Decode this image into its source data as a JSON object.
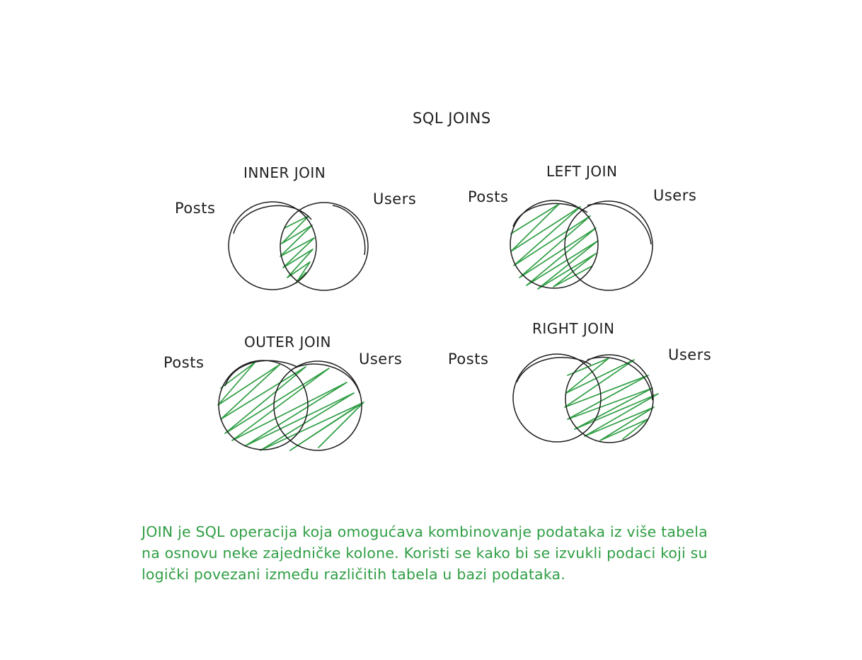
{
  "title": "SQL JOINS",
  "colors": {
    "ink": "#1e1e1e",
    "hatch": "#2f9e44",
    "text_green": "#2f9e44"
  },
  "diagrams": {
    "inner": {
      "title": "INNER JOIN",
      "left_table": "Posts",
      "right_table": "Users",
      "highlight": "intersection"
    },
    "left": {
      "title": "LEFT JOIN",
      "left_table": "Posts",
      "right_table": "Users",
      "highlight": "left circle"
    },
    "outer": {
      "title": "OUTER JOIN",
      "left_table": "Posts",
      "right_table": "Users",
      "highlight": "both circles"
    },
    "right": {
      "title": "RIGHT JOIN",
      "left_table": "Posts",
      "right_table": "Users",
      "highlight": "right circle"
    }
  },
  "description": {
    "line1": "JOIN je SQL operacija koja omogućava kombinovanje podataka iz više tabela",
    "line2": "na osnovu neke zajedničke kolone. Koristi se kako bi se izvukli podaci koji su",
    "line3": "logički povezani između različitih tabela u bazi podataka."
  }
}
